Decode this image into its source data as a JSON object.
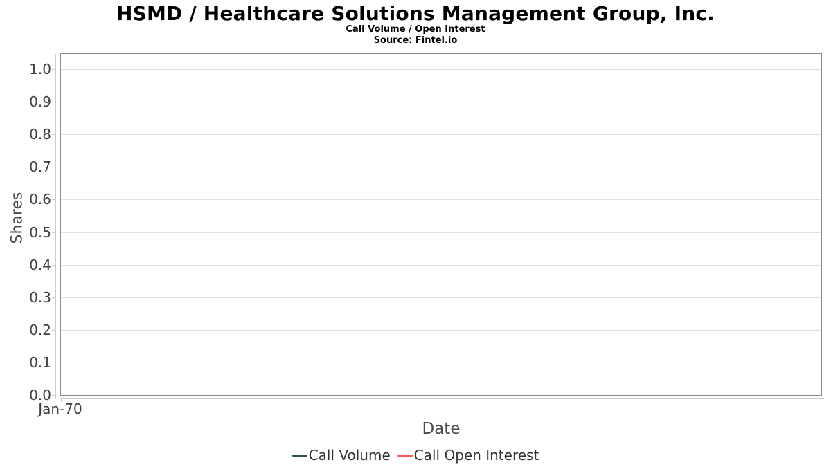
{
  "chart_data": {
    "type": "line",
    "title": "HSMD / Healthcare Solutions Management Group, Inc.",
    "subtitle": "Call Volume / Open Interest",
    "source_note": "Source: Fintel.io",
    "xlabel": "Date",
    "ylabel": "Shares",
    "x_tick_labels": [
      "Jan-70"
    ],
    "y_ticks": [
      0.0,
      0.1,
      0.2,
      0.3,
      0.4,
      0.5,
      0.6,
      0.7,
      0.8,
      0.9,
      1.0
    ],
    "y_tick_labels": [
      "0.0",
      "0.1",
      "0.2",
      "0.3",
      "0.4",
      "0.5",
      "0.6",
      "0.7",
      "0.8",
      "0.9",
      "1.0"
    ],
    "ylim": [
      0,
      1.047
    ],
    "grid": "horizontal-only",
    "legend_position": "bottom-center",
    "series": [
      {
        "name": "Call Volume",
        "color": "#275b3a",
        "x": [],
        "values": []
      },
      {
        "name": "Call Open Interest",
        "color": "#f45b5b",
        "x": [],
        "values": []
      }
    ],
    "style": {
      "plot_border_color": "#8c8c8c",
      "gridline_color": "#e0e0e0",
      "axis_line_color": "#cccccc",
      "tick_label_color": "#3f3f3f",
      "axis_title_color": "#4a4a4a",
      "legend_text_color": "#333333",
      "background_color": "#ffffff"
    }
  }
}
